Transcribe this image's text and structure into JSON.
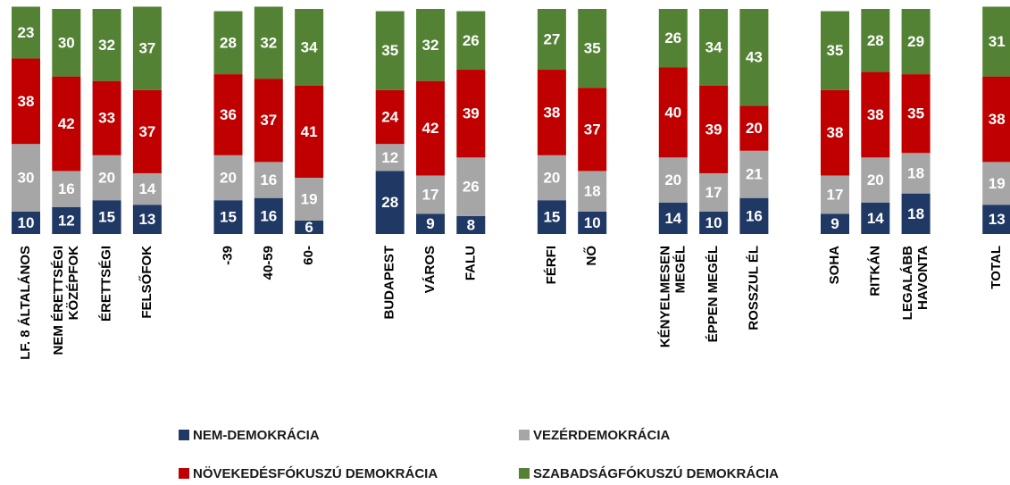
{
  "chart_data": {
    "type": "stacked_bar",
    "categories": [
      "LF. 8 ÁLTALÁNOS",
      "NEM ÉRETTSÉGI\nKÖZÉPFOK",
      "ÉRETTSÉGI",
      "FELSŐFOK",
      null,
      "-39",
      "40-59",
      "60-",
      null,
      "BUDAPEST",
      "VÁROS",
      "FALU",
      null,
      "FÉRFI",
      "NŐ",
      null,
      "KÉNYELMESEN\nMEGÉL",
      "ÉPPEN MEGÉL",
      "ROSSZUL ÉL",
      null,
      "SOHA",
      "RITKÁN",
      "LEGALÁBB\nHAVONTA",
      null,
      "TOTAL"
    ],
    "series": [
      {
        "name": "NEM-DEMOKRÁCIA",
        "color": "#1f3864",
        "values": [
          10,
          12,
          15,
          13,
          null,
          15,
          16,
          6,
          null,
          28,
          9,
          8,
          null,
          15,
          10,
          null,
          14,
          10,
          16,
          null,
          9,
          14,
          18,
          null,
          13
        ]
      },
      {
        "name": "VEZÉRDEMOKRÁCIA",
        "color": "#a6a6a6",
        "values": [
          30,
          16,
          20,
          14,
          null,
          20,
          16,
          19,
          null,
          12,
          17,
          26,
          null,
          20,
          18,
          null,
          20,
          17,
          21,
          null,
          17,
          20,
          18,
          null,
          19
        ]
      },
      {
        "name": "NÖVEKEDÉSFÓKUSZÚ DEMOKRÁCIA",
        "color": "#c00000",
        "values": [
          38,
          42,
          33,
          37,
          null,
          36,
          37,
          41,
          null,
          24,
          42,
          39,
          null,
          38,
          37,
          null,
          40,
          39,
          20,
          null,
          38,
          38,
          35,
          null,
          38
        ]
      },
      {
        "name": "SZABADSÁGFÓKUSZÚ DEMOKRÁCIA",
        "color": "#548235",
        "values": [
          23,
          30,
          32,
          37,
          null,
          28,
          32,
          34,
          null,
          35,
          32,
          26,
          null,
          27,
          35,
          null,
          26,
          34,
          43,
          null,
          35,
          28,
          29,
          null,
          31
        ]
      }
    ],
    "ylim": [
      0,
      100
    ]
  }
}
